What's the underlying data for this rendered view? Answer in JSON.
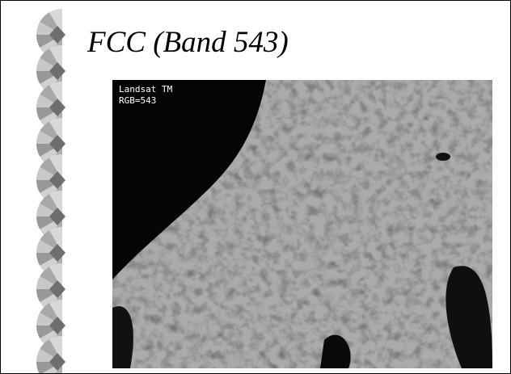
{
  "title": "FCC (Band 543)",
  "image": {
    "caption_line1": "Landsat TM",
    "caption_line2": "RGB=543"
  }
}
